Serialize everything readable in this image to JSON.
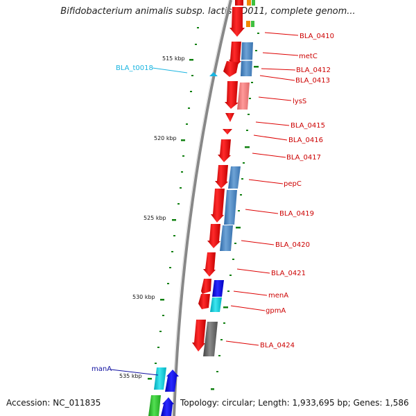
{
  "map": {
    "title": "Bifidobacterium animalis subsp. lactis AD011, complete genom...",
    "accession": "Accession: NC_011835",
    "topology": "Topology: circular; Length: 1,933,695 bp; Genes: 1,586"
  },
  "scale_labels": [
    "515 kbp",
    "520 kbp",
    "525 kbp",
    "530 kbp",
    "535 kbp"
  ],
  "gene_labels": [
    "BLA_0410",
    "metC",
    "BLA_0412",
    "BLA_0413",
    "lysS",
    "BLA_0415",
    "BLA_0416",
    "BLA_0417",
    "pepC",
    "BLA_0419",
    "BLA_0420",
    "BLA_0421",
    "menA",
    "gpmA",
    "BLA_0424"
  ],
  "trna_label": "BLA_t0018",
  "left_label": "manA",
  "colors": {
    "gene_label": "#cc0000",
    "trna_label": "#19b4e0",
    "left_label": "#1010a0",
    "forward_gene": "#ee0000",
    "track_line": "#888888",
    "tick": "#108010"
  }
}
